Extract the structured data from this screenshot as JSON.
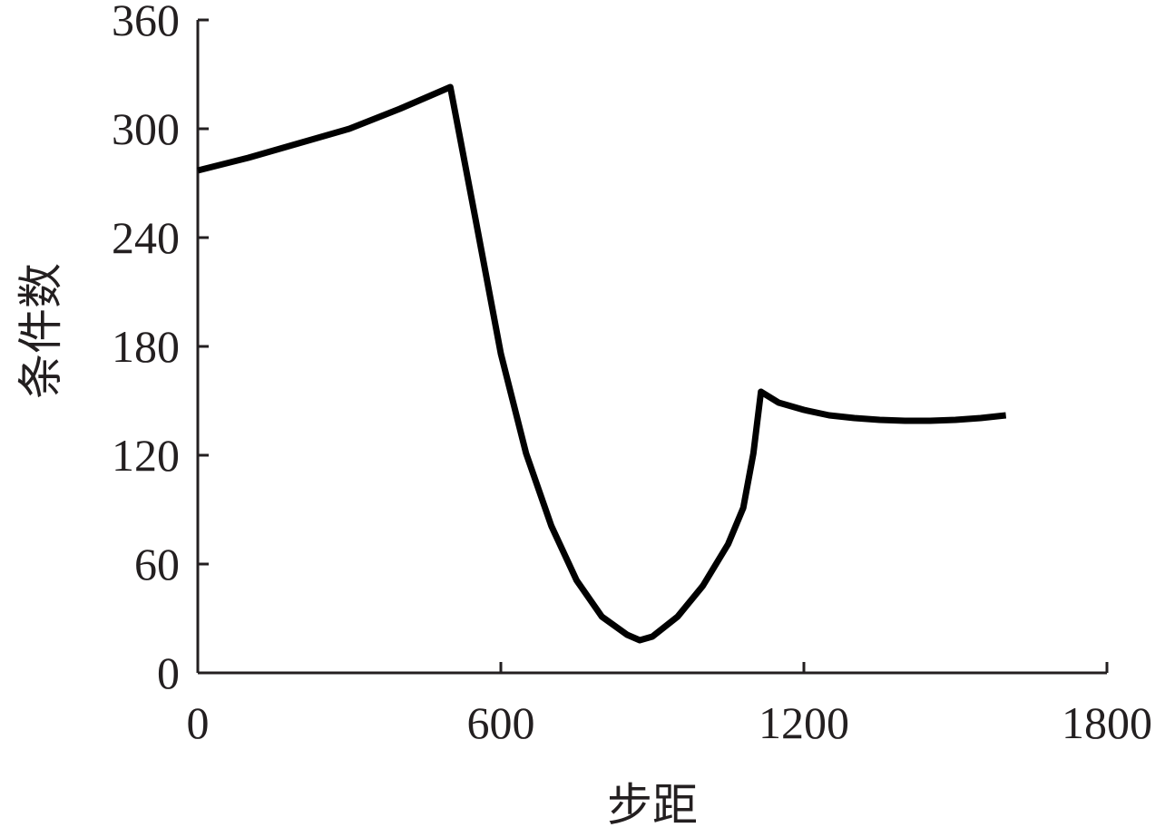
{
  "chart_data": {
    "type": "line",
    "x_label": "步距",
    "y_label": "条件数",
    "x": [
      0,
      100,
      200,
      300,
      400,
      500,
      550,
      600,
      650,
      700,
      750,
      800,
      850,
      875,
      900,
      950,
      1000,
      1050,
      1080,
      1100,
      1115,
      1150,
      1200,
      1250,
      1300,
      1350,
      1400,
      1450,
      1500,
      1550,
      1600
    ],
    "series": [
      {
        "color": "#000000",
        "values": [
          277,
          284,
          292,
          300,
          311,
          323,
          250,
          176,
          121,
          81,
          51,
          31,
          21,
          18,
          20,
          31,
          48,
          71,
          91,
          121,
          155,
          149,
          145,
          142,
          140.5,
          139.5,
          139,
          139,
          139.5,
          140.5,
          142
        ]
      }
    ],
    "xlim": [
      0,
      1800
    ],
    "xticks": [
      0,
      600,
      1200,
      1800
    ],
    "ylim": [
      0,
      360
    ],
    "yticks": [
      0,
      60,
      120,
      180,
      240,
      300,
      360
    ]
  }
}
